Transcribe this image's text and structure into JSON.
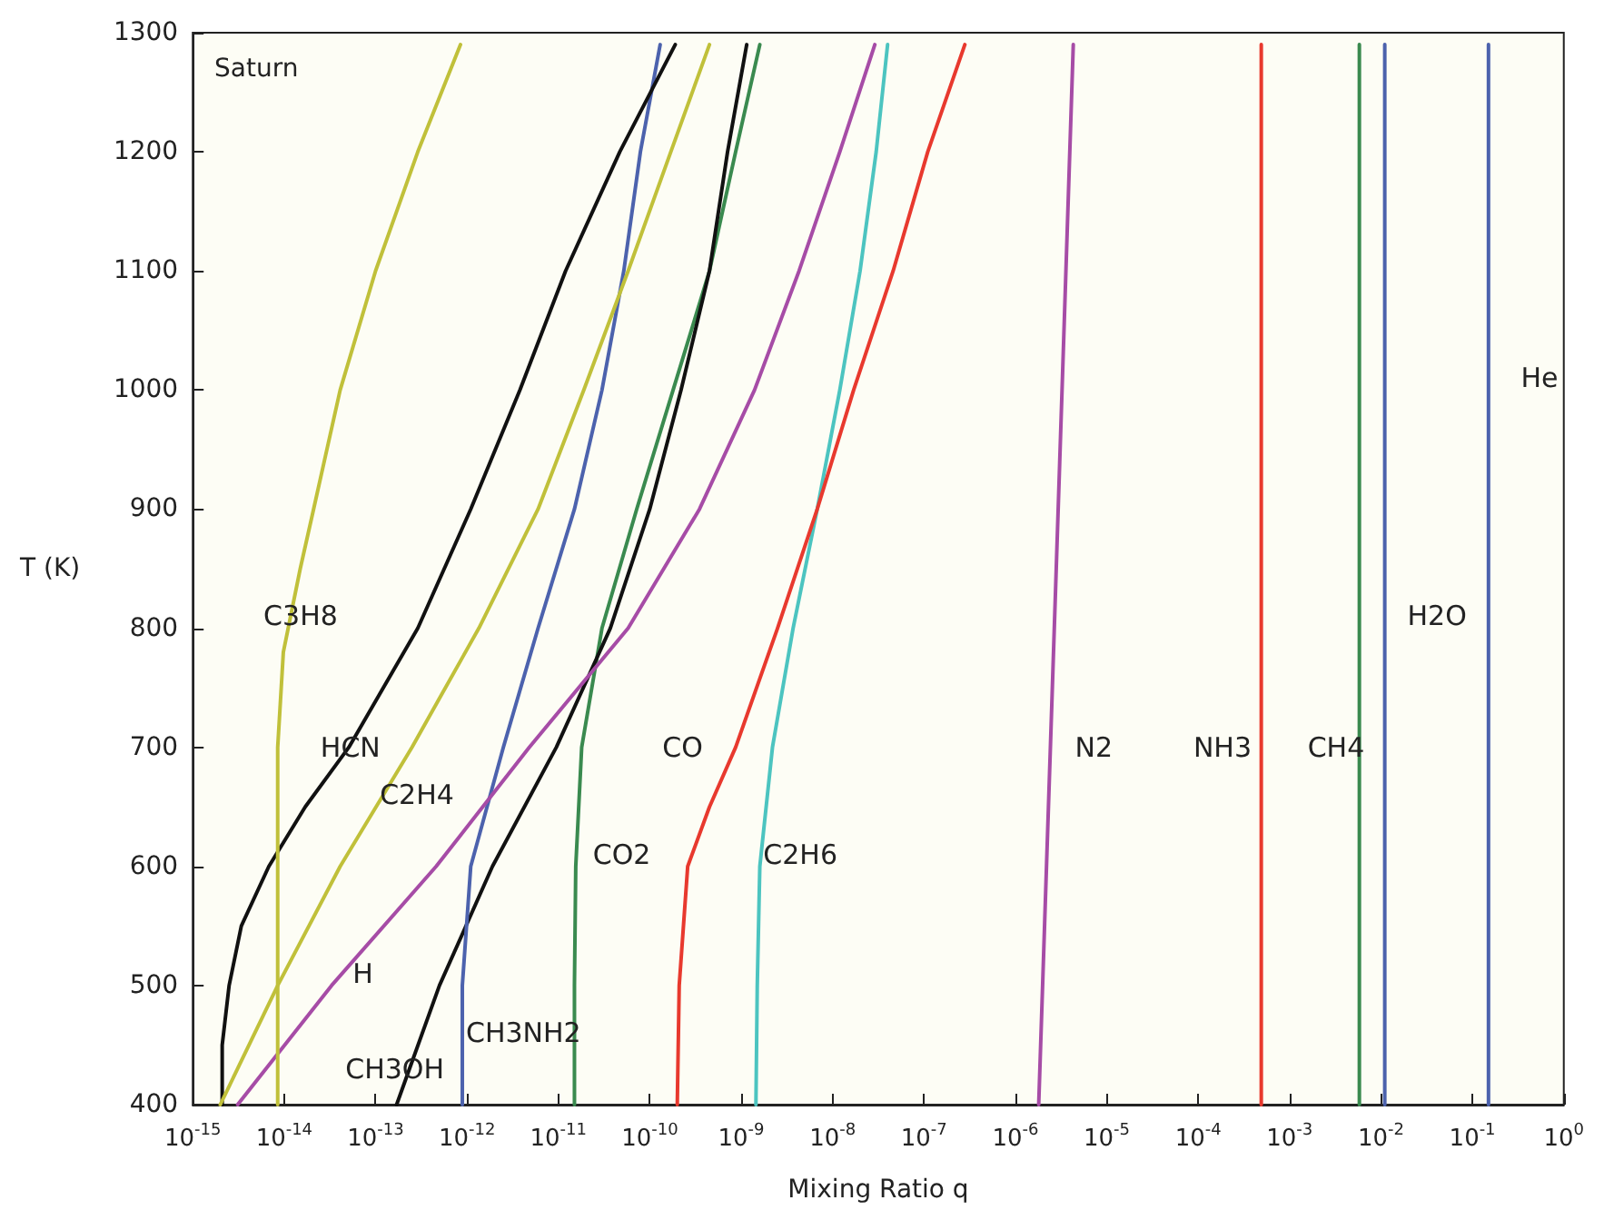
{
  "chart_data": {
    "type": "line",
    "title": "Saturn",
    "xlabel": "Mixing Ratio q",
    "ylabel": "T (K)",
    "log": "x",
    "xlim": [
      1e-15,
      1
    ],
    "ylim": [
      400,
      1300
    ],
    "xticks": [
      {
        "value": 1e-15,
        "label": "10$^{-15}$"
      },
      {
        "value": 1e-14,
        "label": "10$^{-14}$"
      },
      {
        "value": 1e-13,
        "label": "10$^{-13}$"
      },
      {
        "value": 1e-12,
        "label": "10$^{-12}$"
      },
      {
        "value": 1e-11,
        "label": "10$^{-11}$"
      },
      {
        "value": 1e-10,
        "label": "10$^{-10}$"
      },
      {
        "value": 1e-09,
        "label": "10$^{-9}$"
      },
      {
        "value": 1e-08,
        "label": "10$^{-8}$"
      },
      {
        "value": 1e-07,
        "label": "10$^{-7}$"
      },
      {
        "value": 1e-06,
        "label": "10$^{-6}$"
      },
      {
        "value": 1e-05,
        "label": "10$^{-5}$"
      },
      {
        "value": 0.0001,
        "label": "10$^{-4}$"
      },
      {
        "value": 0.001,
        "label": "10$^{-3}$"
      },
      {
        "value": 0.01,
        "label": "10$^{-2}$"
      },
      {
        "value": 0.1,
        "label": "10$^{-1}$"
      },
      {
        "value": 1,
        "label": "10$^{0}$"
      }
    ],
    "yticks": [
      400,
      500,
      600,
      700,
      800,
      900,
      1000,
      1100,
      1200,
      1300
    ],
    "grid": false,
    "legend": false,
    "marker": "none",
    "line_style": "solid",
    "series": [
      {
        "name": "He",
        "color": "#4c62ad",
        "x": [
          0.15,
          0.15
        ],
        "values": [
          400,
          1290
        ]
      },
      {
        "name": "H2O",
        "color": "#4c62ad",
        "x": [
          0.011,
          0.011
        ],
        "values": [
          400,
          1290
        ]
      },
      {
        "name": "CH4",
        "color": "#3a8a4f",
        "x": [
          0.0058,
          0.0058
        ],
        "values": [
          400,
          1290
        ]
      },
      {
        "name": "NH3",
        "color": "#e8392e",
        "x": [
          0.00049,
          0.00049
        ],
        "values": [
          400,
          1290
        ]
      },
      {
        "name": "N2",
        "color": "#a64ca6",
        "x": [
          1.8e-06,
          2.8e-06,
          4.3e-06
        ],
        "values": [
          400,
          850,
          1290
        ]
      },
      {
        "name": "C2H6",
        "color": "#4cc4c0",
        "x": [
          1.45e-09,
          1.5e-09,
          1.6e-09,
          2.2e-09,
          3.7e-09,
          6.8e-09,
          1.2e-08,
          2e-08,
          3e-08,
          4e-08
        ],
        "values": [
          400,
          500,
          600,
          700,
          800,
          900,
          1000,
          1100,
          1200,
          1290
        ]
      },
      {
        "name": "CO",
        "color": "#e8392e",
        "x": [
          2e-10,
          2.1e-10,
          2.6e-10,
          4.5e-10,
          8.7e-10,
          2.5e-09,
          6.8e-09,
          1.7e-08,
          4.6e-08,
          1.1e-07,
          2.8e-07
        ],
        "values": [
          400,
          500,
          600,
          650,
          700,
          800,
          900,
          1000,
          1100,
          1200,
          1290
        ]
      },
      {
        "name": "CO2",
        "color": "#3a8a4f",
        "x": [
          1.5e-11,
          1.5e-11,
          1.55e-11,
          1.8e-11,
          3e-11,
          7.2e-11,
          1.8e-10,
          4.5e-10,
          8.7e-10,
          1.6e-09
        ],
        "values": [
          400,
          500,
          600,
          700,
          800,
          900,
          1000,
          1100,
          1200,
          1290
        ]
      },
      {
        "name": "CH3OH",
        "color": "#111111",
        "x": [
          1.7e-13,
          5e-13,
          1.9e-12,
          9.5e-12,
          3.7e-11,
          1e-10,
          2.2e-10,
          4.5e-10,
          7.1e-10,
          1.15e-09
        ],
        "values": [
          400,
          500,
          600,
          700,
          800,
          900,
          1000,
          1100,
          1200,
          1290
        ]
      },
      {
        "name": "CH3NH2",
        "color": "#4c62ad",
        "x": [
          8.9e-13,
          8.9e-13,
          1.1e-12,
          2.5e-12,
          6e-12,
          1.5e-11,
          3e-11,
          5.2e-11,
          7.9e-11,
          1.3e-10
        ],
        "values": [
          400,
          500,
          600,
          700,
          800,
          900,
          1000,
          1100,
          1200,
          1290
        ]
      },
      {
        "name": "H",
        "color": "#a64ca6",
        "x": [
          3.1e-15,
          3.3e-14,
          4.6e-13,
          4.8e-12,
          5.8e-11,
          3.5e-10,
          1.4e-09,
          4.3e-09,
          1.2e-08,
          2.9e-08
        ],
        "values": [
          400,
          500,
          600,
          700,
          800,
          900,
          1000,
          1100,
          1200,
          1290
        ]
      },
      {
        "name": "HCN",
        "color": "#111111",
        "x": [
          2.1e-15,
          2.1e-15,
          2.5e-15,
          3.4e-15,
          6.8e-15,
          1.7e-14,
          5.1e-14,
          2.9e-13,
          1.1e-12,
          3.8e-12,
          1.2e-11,
          4.7e-11,
          1.9e-10
        ],
        "values": [
          400,
          450,
          500,
          550,
          600,
          650,
          700,
          800,
          900,
          1000,
          1100,
          1200,
          1290
        ]
      },
      {
        "name": "C2H4",
        "color": "#c0c03a",
        "x": [
          2e-15,
          8.5e-15,
          4.1e-14,
          2.5e-13,
          1.35e-12,
          6e-12,
          1.9e-11,
          5.8e-11,
          1.7e-10,
          4.5e-10
        ],
        "values": [
          400,
          500,
          600,
          700,
          800,
          900,
          1000,
          1100,
          1200,
          1290
        ]
      },
      {
        "name": "C3H8",
        "color": "#c0c03a",
        "x": [
          8.5e-15,
          8.5e-15,
          8.5e-15,
          9.8e-15,
          1.5e-14,
          2.1e-14,
          4.1e-14,
          1e-13,
          2.9e-13,
          8.5e-13
        ],
        "values": [
          400,
          600,
          700,
          780,
          850,
          900,
          1000,
          1100,
          1200,
          1290
        ]
      }
    ]
  }
}
